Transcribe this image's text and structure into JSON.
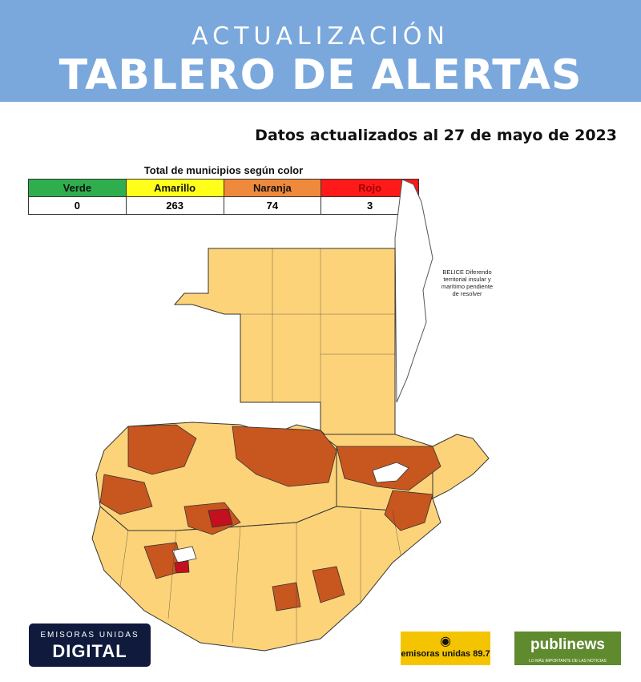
{
  "header": {
    "kicker": "ACTUALIZACIÓN",
    "title": "TABLERO DE ALERTAS"
  },
  "date_text": "Datos actualizados al 27 de mayo de 2023",
  "summary_table": {
    "caption": "Total de municipios según color",
    "headers": [
      "Verde",
      "Amarillo",
      "Naranja",
      "Rojo"
    ],
    "values": [
      "0",
      "263",
      "74",
      "3"
    ]
  },
  "map": {
    "belize_note": "BELICE Diferendo territorial insular y marítimo pendiente de resolver",
    "colors": {
      "yellow": "#fdd37a",
      "orange": "#c8561f",
      "red": "#c4101e",
      "border": "#333333"
    }
  },
  "logos": {
    "emisoras_unidas_small": "EMISORAS UNIDAS",
    "emisoras_unidas_big": "DIGITAL",
    "radio": "emisoras unidas 89.7",
    "publinews": "publinews",
    "publinews_tag": "LO MÁS IMPORTANTE DE LAS NOTICIAS"
  }
}
